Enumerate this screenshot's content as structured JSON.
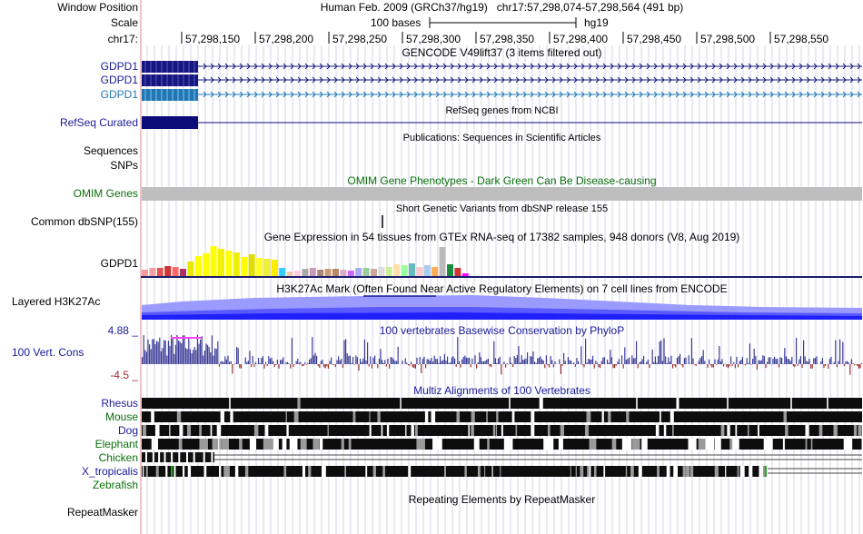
{
  "ruler": {
    "window_position_label": "Window Position",
    "scale_label": "Scale",
    "chrom_label": "chr17:",
    "assembly_text": "Human Feb. 2009 (GRCh37/hg19)   chr17:57,298,074-57,298,564 (491 bp)",
    "scale_text": "100 bases",
    "scale_db": "hg19",
    "ticks": [
      "57,298,150",
      "57,298,200",
      "57,298,250",
      "57,298,300",
      "57,298,350",
      "57,298,400",
      "57,298,450",
      "57,298,500",
      "57,298,550"
    ]
  },
  "tracks": {
    "gencode": {
      "title": "GENCODE V49lift37 (3 items filtered out)",
      "items": [
        "GDPD1",
        "GDPD1",
        "GDPD1"
      ]
    },
    "refseq": {
      "label": "RefSeq Curated",
      "title": "RefSeq genes from NCBI"
    },
    "sequences": {
      "label": "Sequences",
      "title": "Publications: Sequences in Scientific Articles"
    },
    "snps": {
      "label": "SNPs"
    },
    "omim": {
      "label": "OMIM Genes",
      "title": "OMIM Gene Phenotypes - Dark Green Can Be Disease-causing"
    },
    "dbsnp": {
      "label": "Common dbSNP(155)",
      "title": "Short Genetic Variants from dbSNP release 155"
    },
    "gtex": {
      "label": "GDPD1",
      "title": "Gene Expression in 54 tissues from GTEx RNA-seq of 17382 samples, 948 donors (V8, Aug 2019)"
    },
    "h3k27ac": {
      "label": "Layered H3K27Ac",
      "title": "H3K27Ac Mark (Often Found Near Active Regulatory Elements) on 7 cell lines from ENCODE"
    },
    "cons": {
      "label": "100 Vert. Cons",
      "title": "100 vertebrates Basewise Conservation by PhyloP",
      "max": "4.88 _",
      "min": "-4.5 _"
    },
    "multiz": {
      "title": "Multiz Alignments of 100 Vertebrates",
      "species": [
        "Rhesus",
        "Mouse",
        "Dog",
        "Elephant",
        "Chicken",
        "X_tropicalis",
        "Zebrafish"
      ]
    },
    "rmsk": {
      "label": "RepeatMasker",
      "title": "Repeating Elements by RepeatMasker"
    }
  },
  "colors": {
    "gencode_dark": "#161680",
    "gencode_light": "#1f77b4",
    "refseq": "#0c0c78",
    "omim_bar": "#bebebe",
    "cons_pos": "#3c3c96",
    "cons_neg": "#9b2d2d",
    "h3k27ac": "#5a5aff"
  }
}
